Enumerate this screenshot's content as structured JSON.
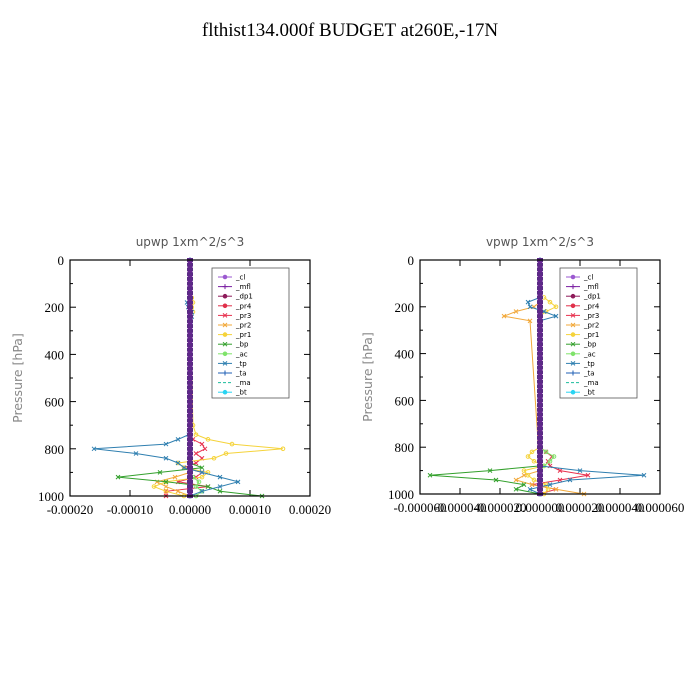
{
  "page_title": "flthist134.000f  BUDGET at260E,-17N",
  "chart_data": [
    {
      "type": "line",
      "title": "upwp   1xm^2/s^3",
      "ylabel": "Pressure  [hPa]",
      "xlabel": "",
      "xlim": [
        -0.0002,
        0.0002
      ],
      "ylim": [
        1000,
        0
      ],
      "y_inverted": true,
      "xtick_labels": [
        "-0.00020",
        "-0.00010",
        "0.00000",
        "0.00010",
        "0.00020"
      ],
      "xtick_values": [
        -0.0002,
        -0.0001,
        0,
        0.0001,
        0.0002
      ],
      "ytick_labels": [
        "0",
        "200",
        "400",
        "600",
        "800",
        "1000"
      ],
      "ytick_values": [
        0,
        200,
        400,
        600,
        800,
        1000
      ],
      "legend_position": "top-right",
      "grid": false,
      "series": [
        {
          "name": "_cl",
          "color": "#9b59d0",
          "marker": "o",
          "y": [
            0,
            200,
            400,
            600,
            800,
            1000
          ],
          "x": [
            0,
            0,
            0,
            0,
            0,
            0
          ]
        },
        {
          "name": "_mfl",
          "color": "#7a1fa2",
          "marker": "+",
          "y": [
            0,
            200,
            400,
            600,
            800,
            1000
          ],
          "x": [
            0,
            0,
            0,
            0,
            0,
            0
          ]
        },
        {
          "name": "_dp1",
          "color": "#8e1b5a",
          "marker": "o",
          "y": [
            0,
            200,
            400,
            600,
            800,
            1000
          ],
          "x": [
            0,
            0,
            0,
            0,
            0,
            0
          ]
        },
        {
          "name": "_pr4",
          "color": "#e0304a",
          "marker": "o",
          "y": [
            0,
            200,
            400,
            600,
            800,
            1000
          ],
          "x": [
            0,
            0,
            0,
            0,
            0,
            0
          ]
        },
        {
          "name": "_pr3",
          "color": "#e8324f",
          "marker": "x",
          "y": [
            740,
            760,
            780,
            800,
            820,
            840,
            860,
            880,
            900,
            920,
            940,
            960,
            980,
            1000
          ],
          "x": [
            0,
            5e-06,
            2e-05,
            2.5e-05,
            1e-05,
            2e-05,
            1e-05,
            -1e-05,
            2e-05,
            1e-05,
            -2e-05,
            3e-05,
            -4e-05,
            -4e-05
          ]
        },
        {
          "name": "_pr2",
          "color": "#f2a93b",
          "marker": "x",
          "y": [
            900,
            920,
            940,
            960,
            980,
            1000
          ],
          "x": [
            0,
            -2.5e-05,
            -5.5e-05,
            -4e-05,
            -2e-05,
            0
          ]
        },
        {
          "name": "_pr1",
          "color": "#f5d33a",
          "marker": "o",
          "y": [
            160,
            180,
            200,
            220,
            240,
            700,
            740,
            760,
            780,
            800,
            820,
            840,
            860,
            880,
            900,
            920,
            940,
            960,
            980,
            1000
          ],
          "x": [
            3e-06,
            5e-06,
            3e-06,
            5e-06,
            0,
            5e-06,
            1e-05,
            3e-05,
            7e-05,
            0.000155,
            6e-05,
            4e-05,
            -2e-05,
            -1e-05,
            3e-05,
            2e-05,
            -4e-05,
            -6e-05,
            -4e-05,
            -1e-05
          ]
        },
        {
          "name": "_bp",
          "color": "#33a02c",
          "marker": "x",
          "y": [
            860,
            880,
            900,
            920,
            940,
            960,
            980,
            1000
          ],
          "x": [
            0,
            2e-05,
            -5e-05,
            -0.00012,
            -4e-05,
            3e-05,
            5e-05,
            0.00012
          ]
        },
        {
          "name": "_ac",
          "color": "#7fe36a",
          "marker": "o",
          "y": [
            900,
            920,
            940,
            960,
            980,
            1000
          ],
          "x": [
            0,
            5e-06,
            1.5e-05,
            1e-05,
            2e-05,
            1e-05
          ]
        },
        {
          "name": "_tp",
          "color": "#2f7fb0",
          "marker": "x",
          "y": [
            180,
            200,
            220,
            240,
            700,
            740,
            760,
            780,
            800,
            820,
            840,
            860,
            880,
            900,
            920,
            940,
            960,
            980,
            1000
          ],
          "x": [
            -5e-06,
            -3e-06,
            3e-06,
            3e-06,
            0,
            -2e-06,
            -2e-05,
            -4e-05,
            -0.00016,
            -9e-05,
            -4e-05,
            -2e-05,
            -1e-05,
            2e-05,
            5e-05,
            8e-05,
            5e-05,
            2e-05,
            0
          ]
        },
        {
          "name": "_ta",
          "color": "#1f5fb4",
          "marker": "+",
          "y": [
            0,
            200,
            400,
            600,
            800,
            1000
          ],
          "x": [
            0,
            0,
            0,
            0,
            0,
            0
          ]
        },
        {
          "name": "_ma",
          "color": "#1abc9c",
          "marker": "-",
          "y": [
            0,
            200,
            400,
            600,
            800,
            1000
          ],
          "x": [
            0,
            0,
            0,
            0,
            0,
            0
          ]
        },
        {
          "name": "_bt",
          "color": "#2ad4f2",
          "marker": "o",
          "y": [
            0,
            200,
            400,
            600,
            800,
            1000
          ],
          "x": [
            0,
            0,
            0,
            0,
            0,
            0
          ]
        }
      ]
    },
    {
      "type": "line",
      "title": "vpwp   1xm^2/s^3",
      "ylabel": "Pressure  [hPa]",
      "xlabel": "",
      "xlim": [
        -6e-05,
        6e-05
      ],
      "ylim": [
        1000,
        0
      ],
      "y_inverted": true,
      "xtick_labels": [
        "-0.000060",
        "-0.000040",
        "-0.000020",
        "0.000000",
        "0.000020",
        "0.000040",
        "0.000060"
      ],
      "xtick_values": [
        -6e-05,
        -4e-05,
        -2e-05,
        0,
        2e-05,
        4e-05,
        6e-05
      ],
      "ytick_labels": [
        "0",
        "200",
        "400",
        "600",
        "800",
        "1000"
      ],
      "ytick_values": [
        0,
        200,
        400,
        600,
        800,
        1000
      ],
      "legend_position": "top-right",
      "grid": false,
      "series": [
        {
          "name": "_cl",
          "color": "#9b59d0",
          "marker": "o",
          "y": [
            0,
            200,
            400,
            600,
            800,
            1000
          ],
          "x": [
            0,
            0,
            0,
            0,
            0,
            0
          ]
        },
        {
          "name": "_mfl",
          "color": "#7a1fa2",
          "marker": "+",
          "y": [
            0,
            200,
            400,
            600,
            800,
            1000
          ],
          "x": [
            0,
            0,
            0,
            0,
            0,
            0
          ]
        },
        {
          "name": "_dp1",
          "color": "#8e1b5a",
          "marker": "o",
          "y": [
            0,
            200,
            400,
            600,
            800,
            1000
          ],
          "x": [
            0,
            0,
            0,
            0,
            0,
            0
          ]
        },
        {
          "name": "_pr4",
          "color": "#e0304a",
          "marker": "o",
          "y": [
            0,
            200,
            400,
            600,
            800,
            1000
          ],
          "x": [
            0,
            0,
            0,
            0,
            0,
            0
          ]
        },
        {
          "name": "_pr3",
          "color": "#e8324f",
          "marker": "x",
          "y": [
            800,
            820,
            840,
            860,
            880,
            900,
            920,
            940,
            960,
            980,
            1000
          ],
          "x": [
            0,
            3e-06,
            6e-06,
            4e-06,
            5e-06,
            1e-05,
            2.4e-05,
            1e-05,
            -4e-06,
            8e-06,
            0
          ]
        },
        {
          "name": "_pr2",
          "color": "#f2a93b",
          "marker": "x",
          "y": [
            180,
            200,
            220,
            240,
            260,
            900,
            920,
            940,
            960,
            980,
            1000
          ],
          "x": [
            0,
            -3e-06,
            -1.2e-05,
            -1.8e-05,
            -5e-06,
            0,
            -8e-06,
            -1.2e-05,
            -4e-06,
            8e-06,
            2.2e-05
          ]
        },
        {
          "name": "_pr1",
          "color": "#f5d33a",
          "marker": "o",
          "y": [
            160,
            180,
            200,
            220,
            240,
            800,
            820,
            840,
            860,
            880,
            900,
            920,
            940,
            960,
            980,
            1000
          ],
          "x": [
            2e-06,
            5e-06,
            8e-06,
            3e-06,
            0,
            0,
            -4e-06,
            -6e-06,
            -3e-06,
            2e-06,
            -8e-06,
            -6e-06,
            -3e-06,
            3e-06,
            4e-06,
            2e-06
          ]
        },
        {
          "name": "_bp",
          "color": "#33a02c",
          "marker": "x",
          "y": [
            880,
            900,
            920,
            940,
            960,
            980,
            1000
          ],
          "x": [
            0,
            -2.5e-05,
            -5.5e-05,
            -2.2e-05,
            -8e-06,
            -1.2e-05,
            0
          ]
        },
        {
          "name": "_ac",
          "color": "#7fe36a",
          "marker": "o",
          "y": [
            800,
            820,
            840,
            860,
            880,
            900
          ],
          "x": [
            0,
            3e-06,
            7e-06,
            5e-06,
            2e-06,
            0
          ]
        },
        {
          "name": "_tp",
          "color": "#2f7fb0",
          "marker": "x",
          "y": [
            160,
            180,
            200,
            220,
            240,
            260,
            880,
            900,
            920,
            940,
            960,
            980,
            1000
          ],
          "x": [
            0,
            -6e-06,
            -5e-06,
            2e-06,
            8e-06,
            0,
            0,
            2e-05,
            5.2e-05,
            1.5e-05,
            5e-06,
            -5e-06,
            0
          ]
        },
        {
          "name": "_ta",
          "color": "#1f5fb4",
          "marker": "+",
          "y": [
            0,
            200,
            400,
            600,
            800,
            1000
          ],
          "x": [
            0,
            0,
            0,
            0,
            0,
            0
          ]
        },
        {
          "name": "_ma",
          "color": "#1abc9c",
          "marker": "-",
          "y": [
            0,
            200,
            400,
            600,
            800,
            1000
          ],
          "x": [
            0,
            0,
            0,
            0,
            0,
            0
          ]
        },
        {
          "name": "_bt",
          "color": "#2ad4f2",
          "marker": "o",
          "y": [
            0,
            200,
            400,
            600,
            800,
            1000
          ],
          "x": [
            0,
            0,
            0,
            0,
            0,
            0
          ]
        }
      ]
    }
  ]
}
